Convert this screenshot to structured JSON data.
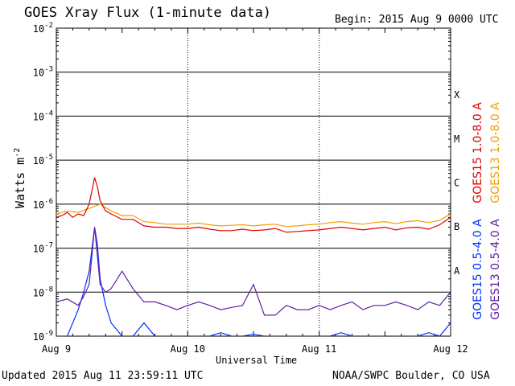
{
  "header": {
    "title": "GOES Xray Flux (1-minute data)",
    "begin": "Begin:  2015 Aug 9 0000 UTC"
  },
  "footer": {
    "updated": "Updated 2015 Aug 11 23:59:11 UTC",
    "credit": "NOAA/SWPC Boulder, CO USA"
  },
  "chart_data": {
    "type": "line",
    "title": "GOES Xray Flux (1-minute data)",
    "xlabel": "Universal Time",
    "ylabel": "Watts m-2",
    "y_scale": "log",
    "ylim": [
      1e-09,
      0.01
    ],
    "xlim_hours": [
      0,
      72
    ],
    "x_tick_labels": [
      "Aug 9",
      "Aug 10",
      "Aug 11",
      "Aug 12"
    ],
    "y_tick_labels": [
      "10-2",
      "10-3",
      "10-4",
      "10-5",
      "10-6",
      "10-7",
      "10-8",
      "10-9"
    ],
    "flare_classes": [
      "X",
      "M",
      "C",
      "B",
      "A"
    ],
    "legend": [
      {
        "label": "GOES15 1.0-8.0 A",
        "color": "#e00000"
      },
      {
        "label": "GOES13 1.0-8.0 A",
        "color": "#f0a000"
      },
      {
        "label": "GOES15 0.5-4.0 A",
        "color": "#0030ff"
      },
      {
        "label": "GOES13 0.5-4.0 A",
        "color": "#6020a0"
      }
    ],
    "series": [
      {
        "name": "GOES15 1.0-8.0 A",
        "color": "#e00000",
        "x": [
          0,
          1,
          2,
          3,
          4,
          5,
          6,
          7,
          7.5,
          8,
          9,
          10,
          12,
          14,
          16,
          18,
          20,
          22,
          24,
          26,
          28,
          30,
          32,
          34,
          36,
          38,
          40,
          42,
          44,
          46,
          48,
          50,
          52,
          54,
          56,
          58,
          60,
          62,
          64,
          66,
          68,
          70,
          72
        ],
        "y": [
          5e-07,
          5.5e-07,
          6.5e-07,
          5e-07,
          6e-07,
          5.5e-07,
          1e-06,
          4e-06,
          2.5e-06,
          1.2e-06,
          7e-07,
          6e-07,
          4.5e-07,
          4.5e-07,
          3.2e-07,
          3e-07,
          3e-07,
          2.8e-07,
          2.8e-07,
          3e-07,
          2.7e-07,
          2.5e-07,
          2.5e-07,
          2.7e-07,
          2.5e-07,
          2.6e-07,
          2.8e-07,
          2.3e-07,
          2.4e-07,
          2.5e-07,
          2.6e-07,
          2.8e-07,
          3e-07,
          2.8e-07,
          2.6e-07,
          2.8e-07,
          3e-07,
          2.6e-07,
          2.9e-07,
          3e-07,
          2.7e-07,
          3.4e-07,
          5e-07
        ]
      },
      {
        "name": "GOES13 1.0-8.0 A",
        "color": "#f0a000",
        "x": [
          0,
          2,
          4,
          6,
          8,
          10,
          12,
          14,
          16,
          18,
          20,
          22,
          24,
          26,
          28,
          30,
          32,
          34,
          36,
          38,
          40,
          42,
          44,
          46,
          48,
          50,
          52,
          54,
          56,
          58,
          60,
          62,
          64,
          66,
          68,
          70,
          72
        ],
        "y": [
          6e-07,
          7e-07,
          6.5e-07,
          8e-07,
          1e-06,
          7e-07,
          5.5e-07,
          5.5e-07,
          4e-07,
          3.8e-07,
          3.5e-07,
          3.5e-07,
          3.5e-07,
          3.7e-07,
          3.4e-07,
          3.2e-07,
          3.3e-07,
          3.4e-07,
          3.2e-07,
          3.4e-07,
          3.5e-07,
          3.1e-07,
          3.2e-07,
          3.4e-07,
          3.5e-07,
          3.8e-07,
          4e-07,
          3.7e-07,
          3.5e-07,
          3.8e-07,
          4e-07,
          3.6e-07,
          4e-07,
          4.2e-07,
          3.8e-07,
          4.3e-07,
          6e-07
        ]
      },
      {
        "name": "GOES15 0.5-4.0 A",
        "color": "#0030ff",
        "x": [
          0,
          2,
          4,
          5,
          6,
          7,
          7.5,
          8,
          9,
          10,
          12,
          14,
          16,
          18,
          20,
          22,
          24,
          26,
          28,
          30,
          32,
          34,
          36,
          38,
          40,
          42,
          44,
          46,
          48,
          50,
          52,
          54,
          56,
          58,
          60,
          62,
          64,
          66,
          68,
          70,
          72
        ],
        "y": [
          1e-09,
          1e-09,
          4e-09,
          1e-08,
          3e-08,
          3e-07,
          1.2e-07,
          2e-08,
          5e-09,
          2e-09,
          1e-09,
          1e-09,
          2e-09,
          1e-09,
          1e-09,
          1e-09,
          1e-09,
          1e-09,
          1e-09,
          1.2e-09,
          1e-09,
          1e-09,
          1.1e-09,
          1e-09,
          1e-09,
          1e-09,
          1e-09,
          1e-09,
          1e-09,
          1e-09,
          1.2e-09,
          1e-09,
          1e-09,
          1e-09,
          1e-09,
          1e-09,
          1e-09,
          1e-09,
          1.2e-09,
          1e-09,
          2e-09
        ]
      },
      {
        "name": "GOES13 0.5-4.0 A",
        "color": "#6020a0",
        "x": [
          0,
          2,
          4,
          5,
          6,
          7,
          8,
          9,
          10,
          12,
          14,
          16,
          18,
          20,
          22,
          24,
          26,
          28,
          30,
          32,
          34,
          36,
          38,
          40,
          42,
          44,
          46,
          48,
          50,
          52,
          54,
          56,
          58,
          60,
          62,
          64,
          66,
          68,
          70,
          72
        ],
        "y": [
          6e-09,
          7e-09,
          5e-09,
          8e-09,
          1.5e-08,
          3e-07,
          1.5e-08,
          1e-08,
          1.2e-08,
          3e-08,
          1.2e-08,
          6e-09,
          6e-09,
          5e-09,
          4e-09,
          5e-09,
          6e-09,
          5e-09,
          4e-09,
          4.5e-09,
          5e-09,
          1.5e-08,
          3e-09,
          3e-09,
          5e-09,
          4e-09,
          4e-09,
          5e-09,
          4e-09,
          5e-09,
          6e-09,
          4e-09,
          5e-09,
          5e-09,
          6e-09,
          5e-09,
          4e-09,
          6e-09,
          5e-09,
          1e-08
        ]
      }
    ]
  }
}
